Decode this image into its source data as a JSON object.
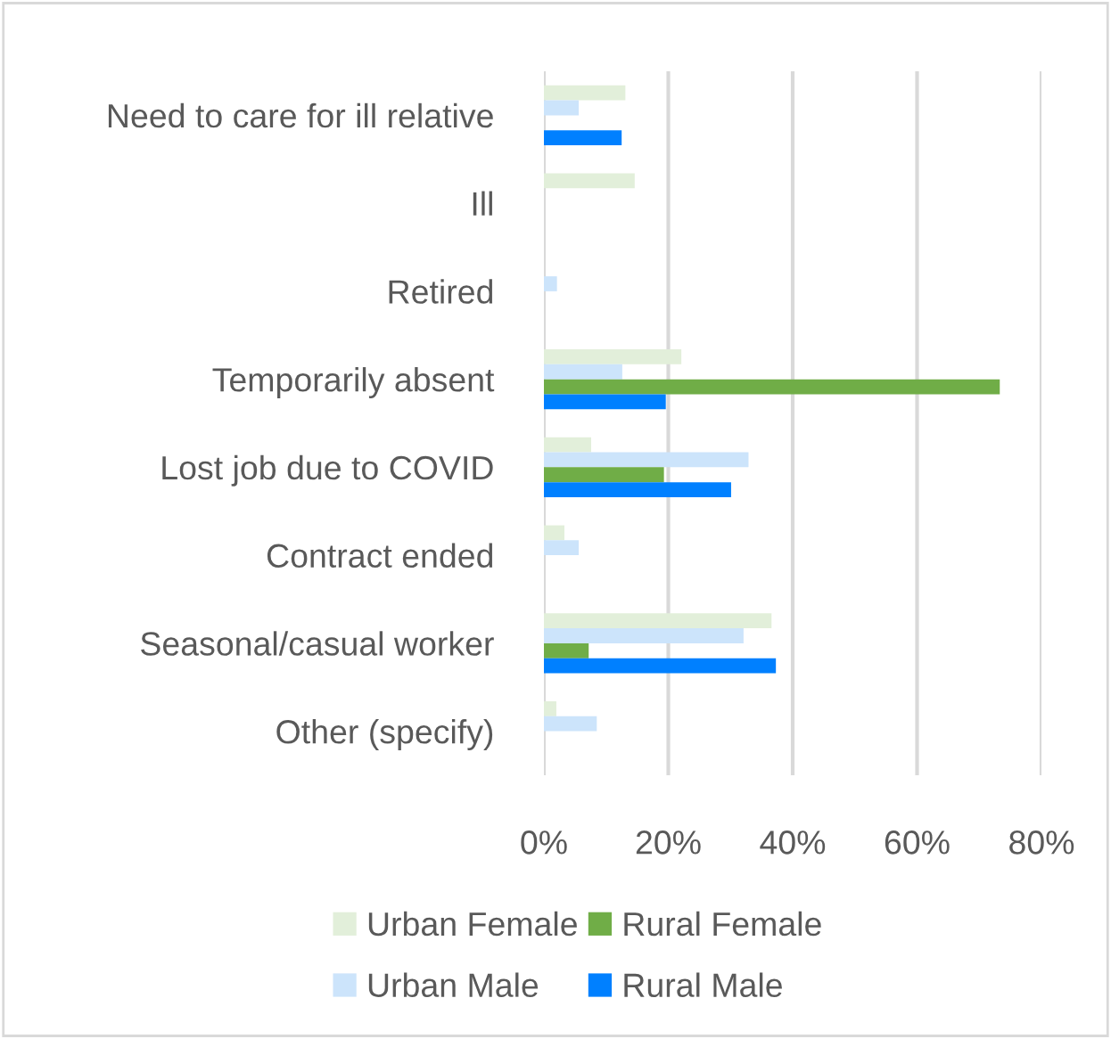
{
  "chart_data": {
    "type": "bar",
    "orientation": "horizontal",
    "categories": [
      "Need to care for ill relative",
      "Ill",
      "Retired",
      "Temporarily absent",
      "Lost job due to COVID",
      "Contract ended",
      "Seasonal/casual worker",
      "Other (specify)"
    ],
    "series": [
      {
        "name": "Urban Female",
        "color": "#e2efda",
        "values": [
          13.1,
          14.6,
          0,
          22.1,
          7.6,
          3.3,
          36.6,
          2.0
        ]
      },
      {
        "name": "Urban Male",
        "color": "#cce4fb",
        "values": [
          5.6,
          0,
          2.1,
          12.6,
          32.9,
          5.6,
          32.1,
          8.5
        ]
      },
      {
        "name": "Rural Female",
        "color": "#70ad47",
        "values": [
          0,
          0,
          0,
          73.3,
          19.3,
          0,
          7.2,
          0
        ]
      },
      {
        "name": "Rural Male",
        "color": "#0080ff",
        "values": [
          12.5,
          0,
          0,
          19.6,
          30.1,
          0,
          37.3,
          0
        ]
      }
    ],
    "xlim": [
      0,
      80
    ],
    "xticks": [
      {
        "value": 0,
        "label": "0%"
      },
      {
        "value": 20,
        "label": "20%"
      },
      {
        "value": 40,
        "label": "40%"
      },
      {
        "value": 60,
        "label": "60%"
      },
      {
        "value": 80,
        "label": "80%"
      }
    ],
    "grid": "x",
    "legend": "bottom"
  }
}
